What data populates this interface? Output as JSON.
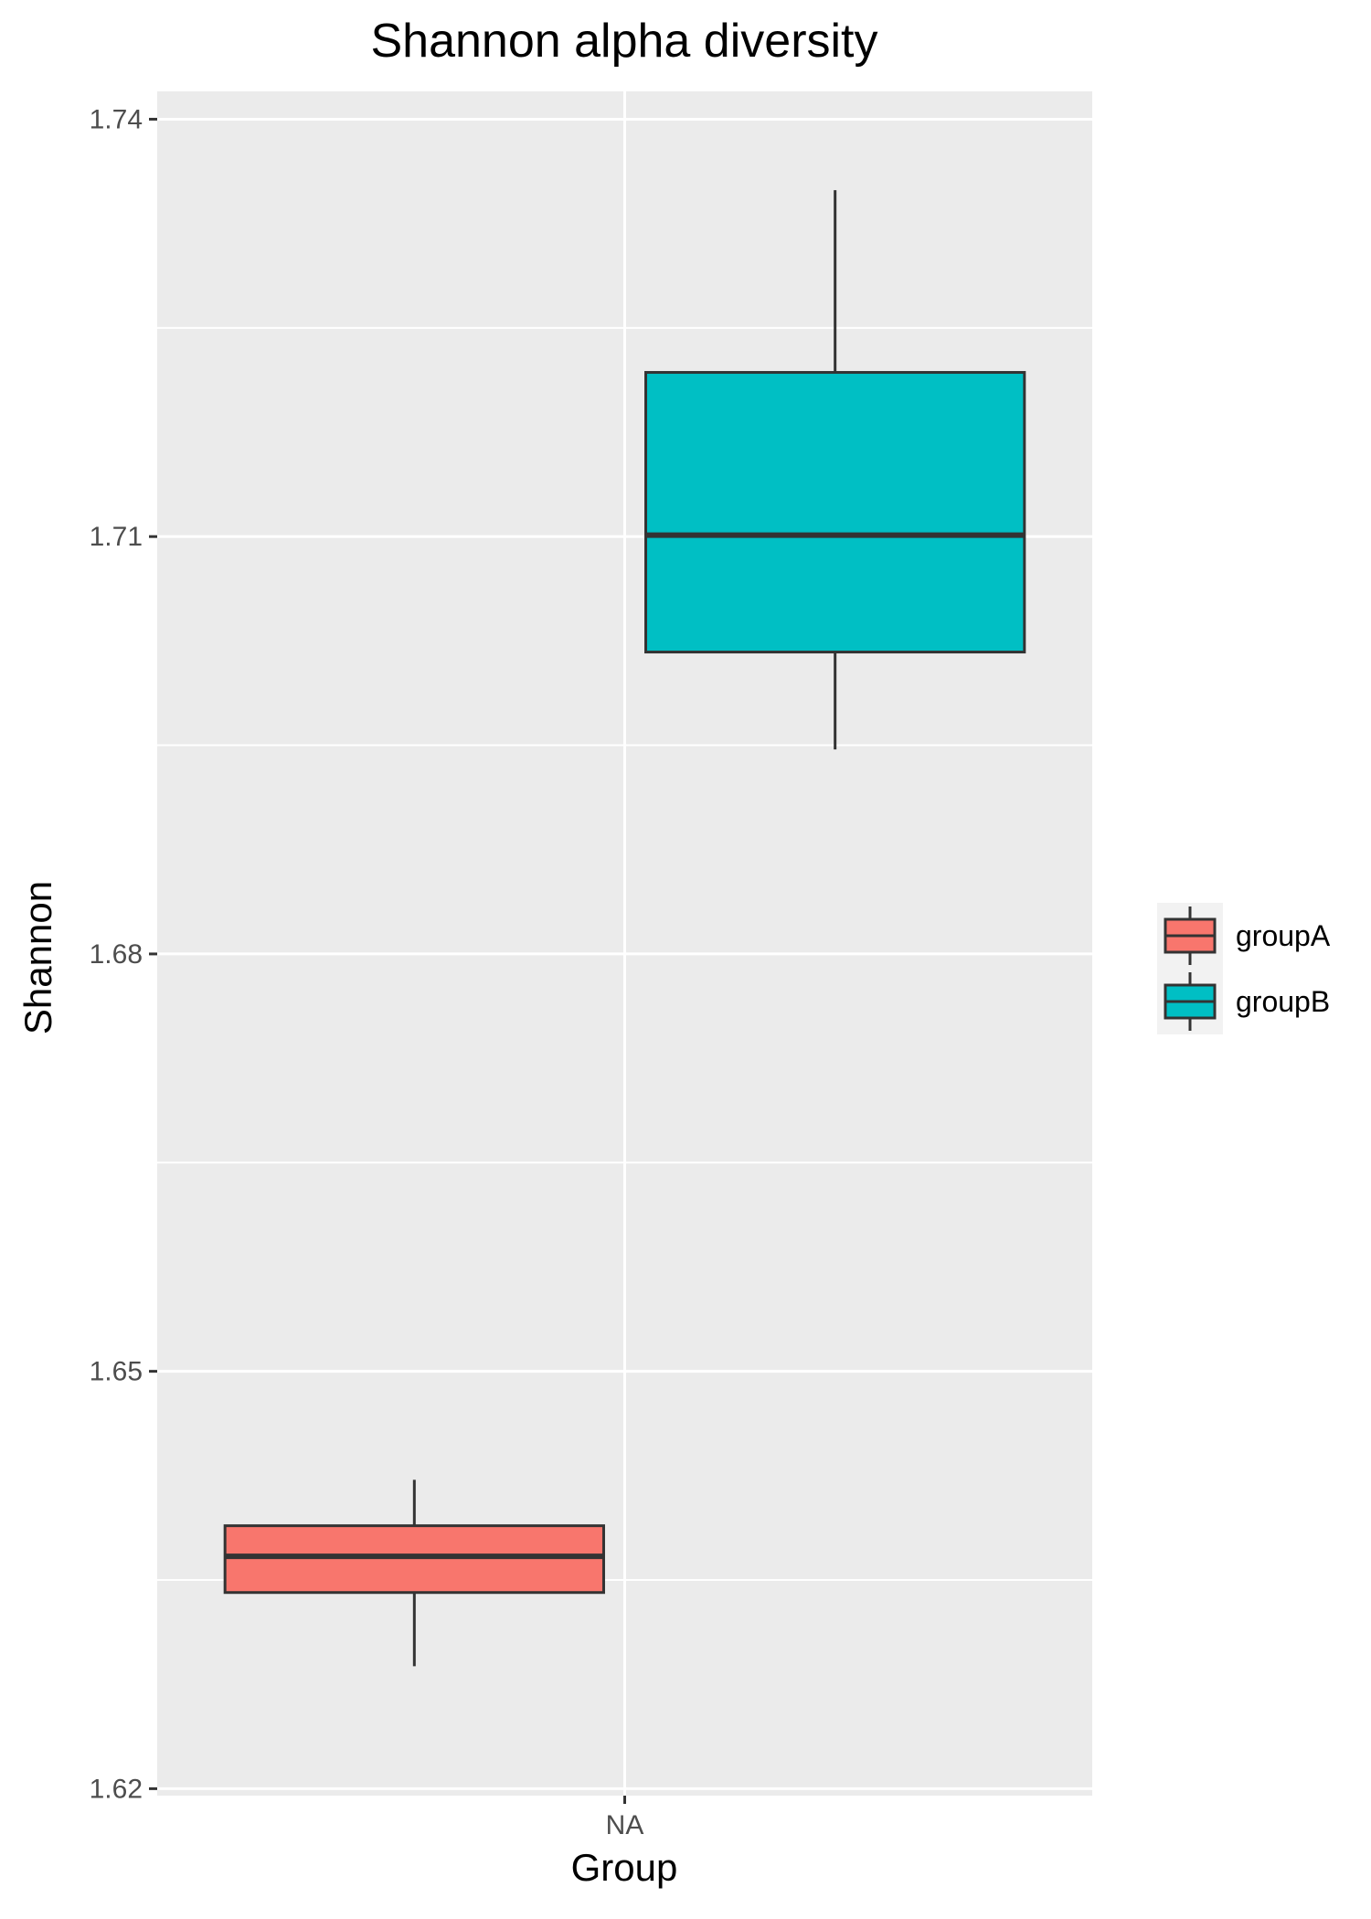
{
  "chart_data": {
    "type": "box",
    "title": "Shannon alpha diversity",
    "xlabel": "Group",
    "ylabel": "Shannon",
    "categories": [
      "NA"
    ],
    "ylim": [
      1.6195,
      1.742
    ],
    "yticks": [
      1.62,
      1.65,
      1.68,
      1.71,
      1.74
    ],
    "ytick_labels": [
      "1.62",
      "1.65",
      "1.68",
      "1.71",
      "1.74"
    ],
    "grid": true,
    "legend_position": "right",
    "series": [
      {
        "name": "groupA",
        "color": "#F8766D",
        "whisker_low": 1.6288,
        "q1": 1.6341,
        "median": 1.6367,
        "q3": 1.6389,
        "whisker_high": 1.6422
      },
      {
        "name": "groupB",
        "color": "#00BFC4",
        "whisker_low": 1.6947,
        "q1": 1.7017,
        "median": 1.7101,
        "q3": 1.7218,
        "whisker_high": 1.7349
      }
    ]
  }
}
